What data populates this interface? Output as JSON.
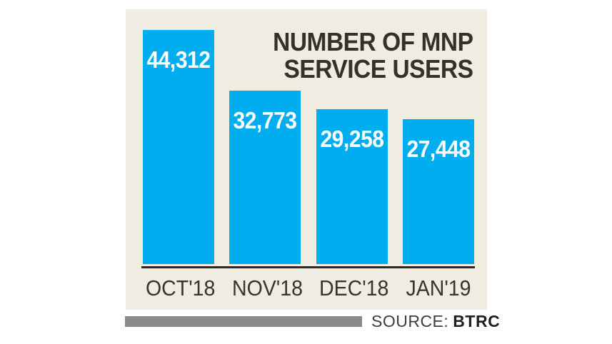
{
  "chart_data": {
    "type": "bar",
    "title": "NUMBER OF MNP SERVICE USERS",
    "title_lines": [
      "NUMBER OF MNP",
      "SERVICE USERS"
    ],
    "categories": [
      "OCT'18",
      "NOV'18",
      "DEC'18",
      "JAN'19"
    ],
    "values": [
      44312,
      32773,
      29258,
      27448
    ],
    "value_labels": [
      "44,312",
      "32,773",
      "29,258",
      "27,448"
    ],
    "xlabel": "",
    "ylabel": "",
    "ylim": [
      0,
      44312
    ],
    "grid": false,
    "legend": "none",
    "colors": {
      "bar": "#00aeef",
      "value_label": "#ffffff",
      "title": "#36302a",
      "category_label": "#3a332c",
      "axis_line": "#2e2821",
      "panel_background": "#efece2",
      "page_background": "#ffffff"
    }
  },
  "source": {
    "label": "SOURCE:",
    "value": "BTRC",
    "divider_color": "#8a8a8a"
  }
}
